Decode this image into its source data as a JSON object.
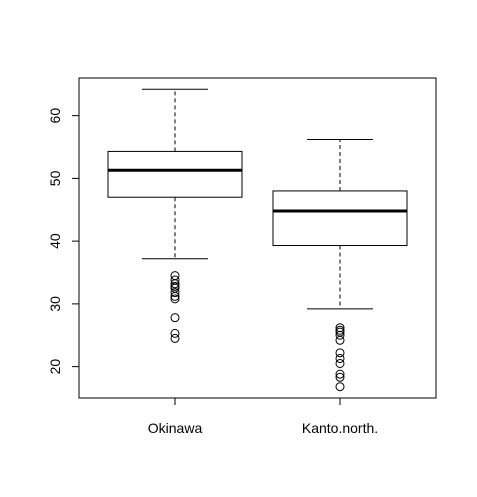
{
  "chart_data": {
    "type": "boxplot",
    "categories": [
      "Okinawa",
      "Kanto.north."
    ],
    "ylim": [
      15,
      66
    ],
    "yticks": [
      20,
      30,
      40,
      50,
      60
    ],
    "yticks_labels": [
      "20",
      "30",
      "40",
      "50",
      "60"
    ],
    "grid": false,
    "boxes": [
      {
        "name": "Okinawa",
        "whisker_low": 37.2,
        "q1": 47.0,
        "median": 51.3,
        "q3": 54.3,
        "whisker_high": 64.2,
        "outliers": [
          34.5,
          33.8,
          33.2,
          32.8,
          32.5,
          31.8,
          31.2,
          30.8,
          27.8,
          25.3,
          24.5
        ]
      },
      {
        "name": "Kanto.north.",
        "whisker_low": 29.2,
        "q1": 39.3,
        "median": 44.8,
        "q3": 48.0,
        "whisker_high": 56.2,
        "outliers": [
          26.2,
          25.8,
          25.5,
          25.0,
          24.2,
          22.2,
          21.3,
          20.5,
          18.8,
          18.3,
          16.8
        ]
      }
    ]
  }
}
